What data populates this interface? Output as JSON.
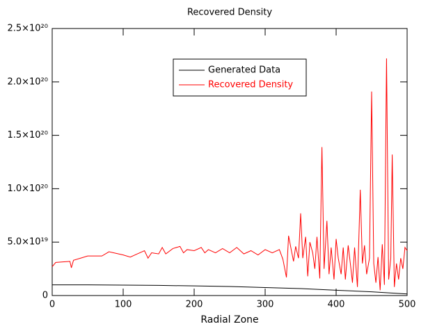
{
  "chart_data": {
    "type": "line",
    "title": "Recovered Density",
    "x_label": "Radial Zone",
    "xlim": [
      0,
      500
    ],
    "ylim": [
      0,
      2.5e+20
    ],
    "xticks": [
      0,
      100,
      200,
      300,
      400,
      500
    ],
    "yticks": [
      0,
      {
        "value": 5e+19,
        "label": "5.0×10¹⁹"
      },
      {
        "value": 1e+20,
        "label": "1.0×10²⁰"
      },
      {
        "value": 1.5e+20,
        "label": "1.5×10²⁰"
      },
      {
        "value": 2e+20,
        "label": "2.0×10²⁰"
      },
      {
        "value": 2.5e+20,
        "label": "2.5×10²⁰"
      }
    ],
    "grid": false,
    "legend": "top-right",
    "series": [
      {
        "name": "Generated Data",
        "color": "#000000",
        "x": [
          0,
          50,
          100,
          150,
          200,
          250,
          300,
          350,
          400,
          450,
          500
        ],
        "values": [
          1e+19,
          1e+19,
          9.8e+18,
          9.5e+18,
          9e+18,
          8.5e+18,
          7.5e+18,
          6.5e+18,
          5e+18,
          3.5e+18,
          1.5e+18
        ]
      },
      {
        "name": "Recovered Density",
        "color": "#ff0000",
        "x": [
          0,
          5,
          25,
          27,
          30,
          40,
          50,
          70,
          80,
          100,
          110,
          120,
          130,
          135,
          140,
          150,
          155,
          160,
          170,
          180,
          185,
          190,
          200,
          210,
          215,
          220,
          230,
          240,
          250,
          260,
          270,
          280,
          290,
          300,
          310,
          320,
          325,
          330,
          333,
          337,
          340,
          343,
          347,
          350,
          353,
          357,
          360,
          363,
          367,
          370,
          373,
          377,
          380,
          383,
          387,
          390,
          393,
          397,
          400,
          403,
          407,
          410,
          413,
          417,
          420,
          423,
          426,
          430,
          434,
          437,
          440,
          443,
          447,
          450,
          453,
          456,
          459,
          462,
          465,
          468,
          471,
          474,
          477,
          479,
          482,
          485,
          488,
          491,
          494,
          497,
          500
        ],
        "values": [
          2.7e+19,
          3.1e+19,
          3.2e+19,
          2.6e+19,
          3.3e+19,
          3.5e+19,
          3.7e+19,
          3.7e+19,
          4.1e+19,
          3.8e+19,
          3.6e+19,
          3.9e+19,
          4.2e+19,
          3.5e+19,
          4e+19,
          3.9e+19,
          4.5e+19,
          3.9e+19,
          4.4e+19,
          4.6e+19,
          4e+19,
          4.3e+19,
          4.2e+19,
          4.5e+19,
          4e+19,
          4.3e+19,
          4e+19,
          4.4e+19,
          4e+19,
          4.5e+19,
          3.9e+19,
          4.2e+19,
          3.8e+19,
          4.3e+19,
          4e+19,
          4.3e+19,
          3.4e+19,
          1.7e+19,
          5.6e+19,
          4.2e+19,
          3.2e+19,
          4.6e+19,
          3.5e+19,
          7.7e+19,
          3.5e+19,
          5.5e+19,
          1.8e+19,
          5e+19,
          4e+19,
          2.5e+19,
          5.5e+19,
          1.6e+19,
          1.39e+20,
          2.5e+19,
          7e+19,
          2e+19,
          4.5e+19,
          1.5e+19,
          5.3e+19,
          3.5e+19,
          2e+19,
          4.5e+19,
          1.5e+19,
          4.7e+19,
          3e+19,
          1.2e+19,
          4.5e+19,
          8e+18,
          9.9e+19,
          3e+19,
          4.7e+19,
          2e+19,
          3.5e+19,
          1.91e+20,
          3e+19,
          1.2e+19,
          3.6e+19,
          5e+18,
          4.8e+19,
          1e+19,
          2.22e+20,
          1.5e+19,
          3.5e+19,
          1.32e+20,
          8e+18,
          3e+19,
          1.5e+19,
          3.5e+19,
          2.5e+19,
          4.5e+19,
          4.2e+19
        ]
      }
    ]
  }
}
